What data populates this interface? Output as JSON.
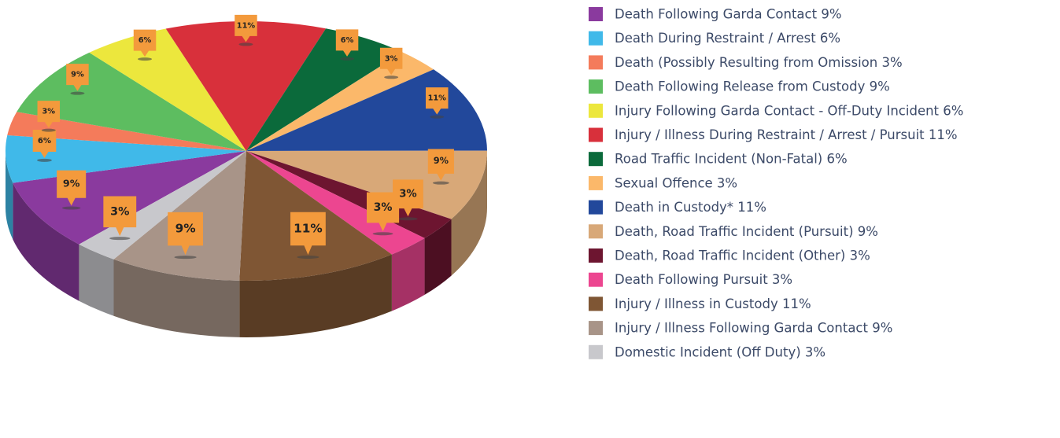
{
  "chart_data": {
    "type": "pie",
    "categories": [
      "Death Following Garda Contact 9%",
      "Death During Restraint / Arrest 6%",
      "Death (Possibly Resulting from Omission 3%",
      "Death Following Release from Custody 9%",
      "Injury Following Garda Contact - Off-Duty Incident 6%",
      "Injury / Illness During Restraint / Arrest / Pursuit 11%",
      "Road Traffic Incident (Non-Fatal) 6%",
      "Sexual Offence 3%",
      "Death in Custody* 11%",
      "Death, Road Traffic Incident (Pursuit) 9%",
      "Death, Road Traffic Incident (Other) 3%",
      "Death Following Pursuit 3%",
      "Injury / Illness in Custody 11%",
      "Injury / Illness Following Garda Contact 9%",
      "Domestic Incident (Off Duty) 3%"
    ],
    "values": [
      9,
      6,
      3,
      9,
      6,
      11,
      6,
      3,
      11,
      9,
      3,
      3,
      11,
      9,
      3
    ],
    "value_labels": [
      "9%",
      "6%",
      "3%",
      "9%",
      "6%",
      "11%",
      "6%",
      "3%",
      "11%",
      "9%",
      "3%",
      "3%",
      "11%",
      "9%",
      "3%"
    ],
    "colors": [
      "#8a3a9e",
      "#40b9e9",
      "#f47b5b",
      "#5dbd60",
      "#ece73d",
      "#d8303b",
      "#0b6a3b",
      "#fbb86a",
      "#22489b",
      "#d8a878",
      "#6d1530",
      "#ec4690",
      "#7f5634",
      "#a89488",
      "#c8c8cc"
    ],
    "legend": "right"
  }
}
